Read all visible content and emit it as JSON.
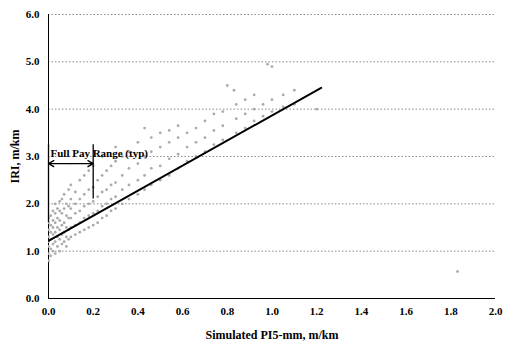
{
  "chart_data": {
    "type": "scatter",
    "x_label": "Simulated PI5-mm, m/km",
    "y_label": "IRI, m/km",
    "xlim": [
      0,
      2.0
    ],
    "ylim": [
      0,
      6.0
    ],
    "xticks": [
      {
        "value": 0,
        "label": "0.0"
      },
      {
        "value": 0.2,
        "label": "0.2"
      },
      {
        "value": 0.4,
        "label": "0.4"
      },
      {
        "value": 0.6,
        "label": "0.6"
      },
      {
        "value": 0.8,
        "label": "0.8"
      },
      {
        "value": 1.0,
        "label": "1.0"
      },
      {
        "value": 1.2,
        "label": "1.2"
      },
      {
        "value": 1.4,
        "label": "1.4"
      },
      {
        "value": 1.6,
        "label": "1.6"
      },
      {
        "value": 1.8,
        "label": "1.8"
      },
      {
        "value": 2.0,
        "label": "2.0"
      }
    ],
    "yticks": [
      {
        "value": 0,
        "label": "0.0"
      },
      {
        "value": 1.0,
        "label": "1.0"
      },
      {
        "value": 2.0,
        "label": "2.0"
      },
      {
        "value": 3.0,
        "label": "3.0"
      },
      {
        "value": 4.0,
        "label": "4.0"
      },
      {
        "value": 5.0,
        "label": "5.0"
      },
      {
        "value": 6.0,
        "label": "6.0"
      }
    ],
    "grid": true,
    "annotations": [
      {
        "text": "Full Pay Range (typ)",
        "x": [
          0,
          0.2
        ],
        "y": 2.85
      }
    ],
    "series": [
      {
        "type": "scatter",
        "marker": "circle",
        "color": "#ababab",
        "x": [
          0,
          0,
          0,
          0,
          0,
          0,
          0,
          0,
          0.01,
          0.01,
          0.01,
          0.01,
          0.01,
          0.01,
          0.02,
          0.02,
          0.02,
          0.02,
          0.02,
          0.02,
          0.03,
          0.03,
          0.03,
          0.03,
          0.03,
          0.03,
          0.04,
          0.04,
          0.04,
          0.04,
          0.04,
          0.05,
          0.05,
          0.05,
          0.05,
          0.05,
          0.05,
          0.06,
          0.06,
          0.06,
          0.06,
          0.06,
          0.07,
          0.07,
          0.07,
          0.07,
          0.07,
          0.08,
          0.08,
          0.08,
          0.08,
          0.08,
          0.09,
          0.09,
          0.09,
          0.09,
          0.09,
          0.1,
          0.1,
          0.1,
          0.1,
          0.1,
          0.1,
          0.12,
          0.12,
          0.12,
          0.12,
          0.12,
          0.14,
          0.14,
          0.14,
          0.14,
          0.14,
          0.16,
          0.16,
          0.16,
          0.16,
          0.16,
          0.18,
          0.18,
          0.18,
          0.18,
          0.18,
          0.2,
          0.2,
          0.2,
          0.2,
          0.2,
          0.22,
          0.22,
          0.22,
          0.22,
          0.24,
          0.24,
          0.24,
          0.24,
          0.24,
          0.26,
          0.26,
          0.26,
          0.26,
          0.28,
          0.28,
          0.28,
          0.28,
          0.3,
          0.3,
          0.3,
          0.3,
          0.3,
          0.33,
          0.33,
          0.33,
          0.33,
          0.36,
          0.36,
          0.36,
          0.36,
          0.4,
          0.4,
          0.4,
          0.4,
          0.43,
          0.43,
          0.43,
          0.43,
          0.46,
          0.46,
          0.46,
          0.46,
          0.5,
          0.5,
          0.5,
          0.5,
          0.54,
          0.54,
          0.54,
          0.54,
          0.58,
          0.58,
          0.58,
          0.58,
          0.62,
          0.62,
          0.62,
          0.66,
          0.66,
          0.66,
          0.7,
          0.7,
          0.7,
          0.74,
          0.74,
          0.74,
          0.78,
          0.78,
          0.78,
          0.8,
          0.83,
          0.84,
          0.84,
          0.84,
          0.88,
          0.88,
          0.88,
          0.92,
          0.92,
          0.92,
          0.96,
          0.96,
          0.98,
          1.0,
          1.0,
          1.0,
          1.05,
          1.05,
          1.1,
          1.1,
          1.2,
          1.83
        ],
        "values": [
          0.8,
          0.95,
          1.1,
          1.2,
          1.3,
          1.45,
          1.6,
          1.7,
          0.9,
          1.05,
          1.25,
          1.4,
          1.55,
          1.75,
          1.0,
          1.15,
          1.35,
          1.5,
          1.65,
          1.85,
          0.95,
          1.2,
          1.4,
          1.6,
          1.8,
          2.0,
          1.1,
          1.3,
          1.5,
          1.7,
          1.9,
          1.0,
          1.25,
          1.45,
          1.65,
          1.85,
          2.05,
          1.15,
          1.35,
          1.55,
          1.8,
          2.1,
          1.2,
          1.4,
          1.6,
          1.9,
          2.2,
          1.1,
          1.3,
          1.5,
          1.75,
          2.0,
          1.25,
          1.45,
          1.7,
          1.95,
          2.3,
          1.3,
          1.5,
          1.7,
          1.9,
          2.1,
          2.4,
          1.35,
          1.55,
          1.8,
          2.0,
          2.25,
          1.4,
          1.6,
          1.85,
          2.1,
          2.5,
          1.45,
          1.7,
          1.95,
          2.2,
          2.6,
          1.5,
          1.75,
          2.0,
          2.3,
          2.7,
          1.55,
          1.8,
          2.05,
          2.35,
          2.8,
          1.6,
          1.85,
          2.15,
          2.5,
          1.7,
          1.95,
          2.25,
          2.6,
          3.0,
          1.75,
          2.0,
          2.3,
          2.7,
          1.85,
          2.1,
          2.4,
          2.8,
          1.9,
          2.15,
          2.45,
          2.9,
          3.2,
          2.0,
          2.3,
          2.6,
          3.0,
          2.1,
          2.4,
          2.75,
          3.1,
          2.2,
          2.5,
          2.85,
          3.3,
          2.3,
          2.6,
          3.0,
          3.6,
          2.4,
          2.75,
          3.1,
          3.4,
          2.5,
          2.8,
          3.2,
          3.5,
          2.6,
          2.95,
          3.3,
          3.55,
          2.75,
          3.05,
          3.4,
          3.65,
          2.9,
          3.2,
          3.5,
          3.0,
          3.3,
          3.6,
          3.1,
          3.4,
          3.75,
          3.25,
          3.55,
          3.9,
          3.35,
          3.65,
          3.95,
          4.5,
          4.4,
          3.5,
          3.8,
          4.1,
          3.6,
          3.9,
          4.2,
          3.75,
          4.0,
          4.3,
          3.85,
          4.1,
          4.95,
          3.95,
          4.2,
          4.9,
          4.05,
          4.3,
          4.1,
          4.4,
          4.0,
          0.57
        ]
      },
      {
        "type": "line",
        "line_style": "solid",
        "color": "#000000",
        "x": [
          0,
          1.22
        ],
        "values": [
          1.22,
          4.45
        ]
      }
    ]
  }
}
